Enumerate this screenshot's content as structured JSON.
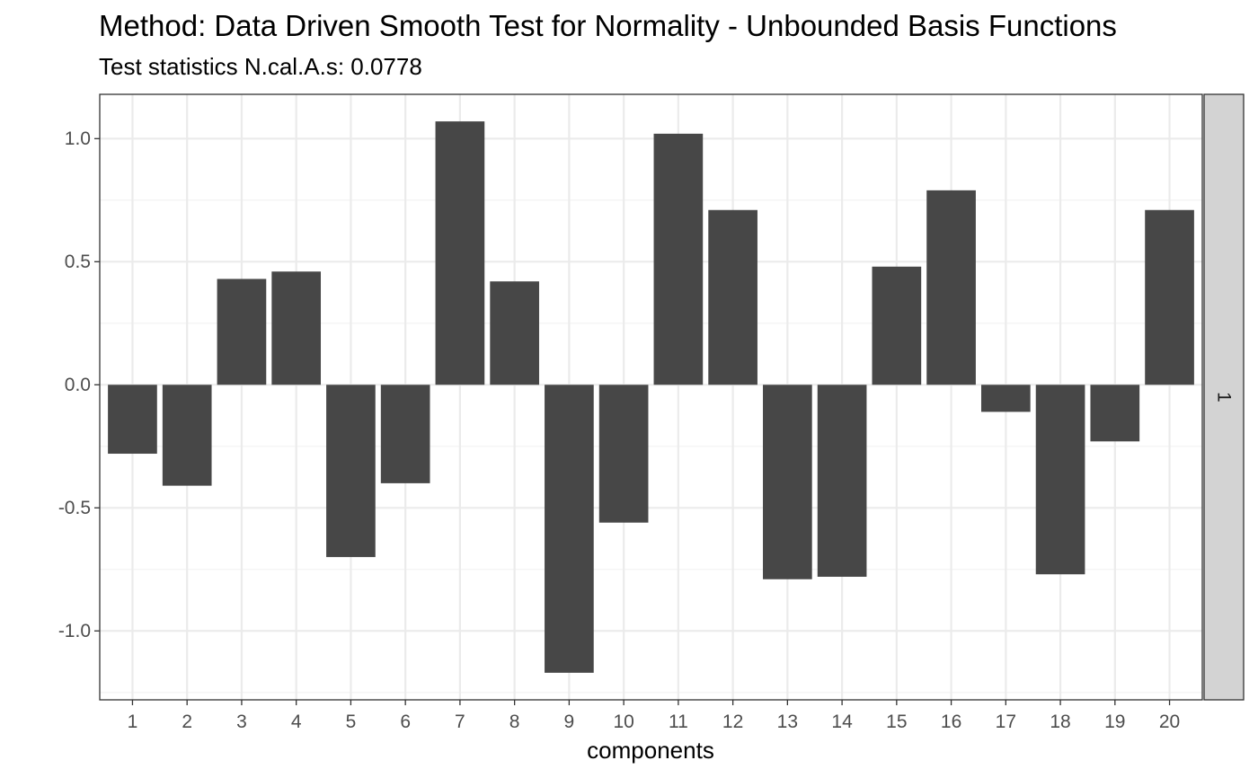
{
  "chart_data": {
    "type": "bar",
    "title": "Method: Data Driven Smooth Test for Normality - Unbounded Basis Functions",
    "subtitle": "Test statistics N.cal.A.s: 0.0778",
    "xlabel": "components",
    "ylabel": "",
    "facet_label": "1",
    "categories": [
      "1",
      "2",
      "3",
      "4",
      "5",
      "6",
      "7",
      "8",
      "9",
      "10",
      "11",
      "12",
      "13",
      "14",
      "15",
      "16",
      "17",
      "18",
      "19",
      "20"
    ],
    "values": [
      -0.28,
      -0.41,
      0.43,
      0.46,
      -0.7,
      -0.4,
      1.07,
      0.42,
      -1.17,
      -0.56,
      1.02,
      0.71,
      -0.79,
      -0.78,
      0.48,
      0.79,
      -0.11,
      -0.77,
      -0.23,
      0.71
    ],
    "ylim": [
      -1.28,
      1.18
    ],
    "yticks": [
      -1.0,
      -0.5,
      0.0,
      0.5,
      1.0
    ],
    "ytick_labels": [
      "-1.0",
      "-0.5",
      "0.0",
      "0.5",
      "1.0"
    ],
    "grid": true,
    "legend": "none",
    "colors": {
      "bar": "#474747",
      "panel_border": "#333333",
      "grid_major": "#ebebeb",
      "grid_minor": "#f2f2f2",
      "strip_fill": "#d3d3d3",
      "tick_text": "#4d4d4d"
    }
  }
}
